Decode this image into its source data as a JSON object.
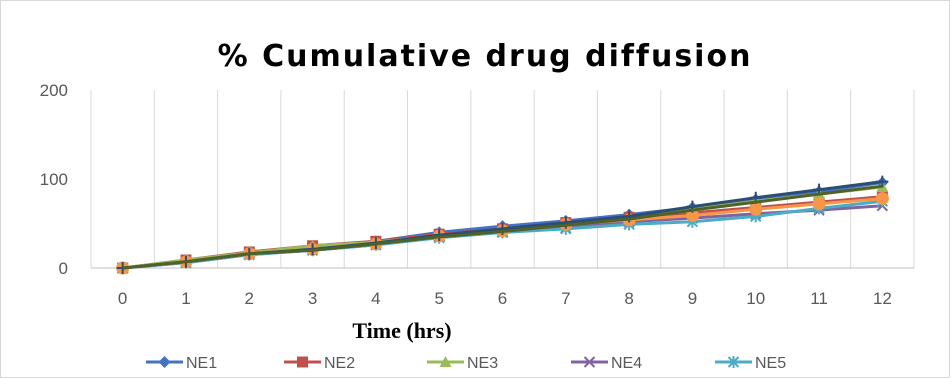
{
  "chart_data": {
    "type": "line",
    "title": "% Cumulative drug diffusion",
    "xlabel": "Time (hrs)",
    "ylabel": "",
    "categories": [
      "0",
      "1",
      "2",
      "3",
      "4",
      "5",
      "6",
      "7",
      "8",
      "9",
      "10",
      "11",
      "12"
    ],
    "yticks": [
      "0",
      "100",
      "200"
    ],
    "ylim": [
      0,
      200
    ],
    "grid": "vertical",
    "legend_position": "bottom",
    "series": [
      {
        "name": "NE1",
        "color": "#4472C4",
        "marker": "diamond",
        "values": [
          0,
          8,
          17,
          22,
          30,
          40,
          47,
          53,
          60,
          68,
          77,
          86,
          96
        ]
      },
      {
        "name": "NE2",
        "color": "#C0504D",
        "marker": "square",
        "values": [
          0,
          9,
          18,
          25,
          30,
          38,
          44,
          51,
          57,
          62,
          68,
          74,
          80
        ]
      },
      {
        "name": "NE3",
        "color": "#9BBB59",
        "marker": "triangle",
        "values": [
          0,
          9,
          17,
          25,
          29,
          36,
          41,
          48,
          56,
          66,
          75,
          83,
          91
        ]
      },
      {
        "name": "NE4",
        "color": "#8064A2",
        "marker": "x",
        "values": [
          0,
          6,
          15,
          20,
          26,
          35,
          40,
          45,
          52,
          56,
          61,
          65,
          70
        ]
      },
      {
        "name": "NE5",
        "color": "#4BACC6",
        "marker": "star",
        "values": [
          0,
          6,
          15,
          20,
          26,
          34,
          40,
          44,
          49,
          52,
          58,
          67,
          75
        ]
      },
      {
        "name": "",
        "color": "#F79646",
        "marker": "circle",
        "values": [
          0,
          7,
          16,
          21,
          27,
          36,
          42,
          49,
          54,
          59,
          66,
          72,
          78
        ]
      },
      {
        "name": "",
        "color": "#2C4D75",
        "marker": "plus",
        "values": [
          0,
          7,
          16,
          21,
          28,
          37,
          44,
          51,
          58,
          69,
          79,
          88,
          97
        ]
      },
      {
        "name": "",
        "color": "#4F6228",
        "marker": "none",
        "values": [
          0,
          7,
          16,
          20,
          27,
          35,
          41,
          48,
          55,
          65,
          74,
          83,
          92
        ]
      }
    ]
  }
}
